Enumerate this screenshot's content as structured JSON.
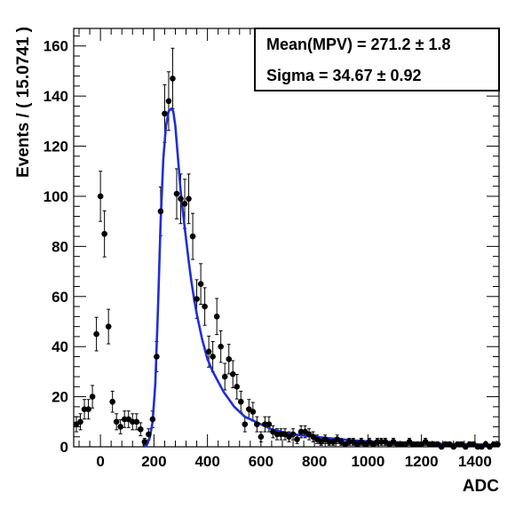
{
  "chart_data": {
    "type": "scatter",
    "title": "",
    "xlabel": "ADC",
    "ylabel": "Events / ( 15.0741 )",
    "xlim": [
      -100,
      1490
    ],
    "ylim": [
      0,
      167
    ],
    "xticks": [
      0,
      200,
      400,
      600,
      800,
      1000,
      1200,
      1400
    ],
    "yticks": [
      0,
      20,
      40,
      60,
      80,
      100,
      120,
      140,
      160
    ],
    "xtick_labels": [
      "0",
      "200",
      "400",
      "600",
      "800",
      "1000",
      "1200",
      "1400"
    ],
    "ytick_labels": [
      "0",
      "20",
      "40",
      "60",
      "80",
      "100",
      "120",
      "140",
      "160"
    ],
    "grid": false,
    "stats": {
      "line1_label": "Mean(MPV) =  271.2 ",
      "line1_pm": "± 1.8",
      "line2_label": "Sigma =  34.67 ",
      "line2_pm": "± 0.92"
    },
    "series": [
      {
        "kind": "points",
        "color": "#000000",
        "x": [
          -90,
          -75,
          -60,
          -45,
          -30,
          -15,
          0,
          15,
          30,
          45,
          60,
          75,
          90,
          105,
          120,
          135,
          150,
          165,
          180,
          195,
          210,
          225,
          240,
          255,
          270,
          285,
          300,
          315,
          330,
          345,
          360,
          375,
          390,
          405,
          420,
          435,
          450,
          465,
          480,
          495,
          510,
          525,
          540,
          555,
          570,
          585,
          600,
          615,
          630,
          645,
          660,
          675,
          690,
          705,
          720,
          735,
          750,
          765,
          780,
          795,
          810,
          825,
          840,
          855,
          870,
          885,
          900,
          915,
          930,
          945,
          960,
          975,
          990,
          1005,
          1020,
          1035,
          1050,
          1065,
          1080,
          1095,
          1110,
          1125,
          1140,
          1155,
          1170,
          1185,
          1200,
          1215,
          1230,
          1245,
          1260,
          1275,
          1290,
          1305,
          1320,
          1335,
          1350,
          1365,
          1380,
          1395,
          1410,
          1425,
          1440,
          1455,
          1470,
          1485
        ],
        "y": [
          9,
          10,
          15,
          15,
          20,
          45,
          100,
          85,
          48,
          18,
          10,
          8,
          11,
          11,
          10,
          10,
          7,
          2,
          5,
          11,
          36,
          94,
          133,
          138,
          147,
          101,
          99,
          97,
          99,
          84,
          59,
          65,
          56,
          38,
          36,
          52,
          40,
          28,
          35,
          29,
          24,
          18,
          9,
          15,
          14,
          9,
          4,
          9,
          9,
          6,
          5,
          5,
          5,
          4,
          5,
          3,
          6,
          6,
          5,
          4,
          3,
          2,
          3,
          2,
          2,
          3,
          2,
          1,
          2,
          2,
          1,
          2,
          1,
          2,
          1,
          2,
          2,
          2,
          1,
          2,
          1,
          1,
          1,
          2,
          1,
          1,
          1,
          2,
          1,
          1,
          1,
          0,
          1,
          1,
          0,
          1,
          1,
          0,
          1,
          1,
          0,
          0,
          1,
          0,
          1,
          1
        ],
        "err": [
          3,
          3.2,
          3.9,
          3.9,
          4.5,
          6.7,
          10,
          9.2,
          6.9,
          4.2,
          3.2,
          2.8,
          3.3,
          3.3,
          3.2,
          3.2,
          2.6,
          1.4,
          2.2,
          3.3,
          6,
          9.7,
          11.5,
          11.7,
          12.1,
          10,
          9.9,
          9.8,
          9.9,
          9.2,
          7.7,
          8.1,
          7.5,
          6.2,
          6,
          7.2,
          6.3,
          5.3,
          5.9,
          5.4,
          4.9,
          4.2,
          3,
          3.9,
          3.7,
          3,
          2,
          3,
          3,
          2.4,
          2.2,
          2.2,
          2.2,
          2,
          2.2,
          1.7,
          2.4,
          2.4,
          2.2,
          2,
          1.7,
          1.4,
          1.7,
          1.4,
          1.4,
          1.7,
          1.4,
          1,
          1.4,
          1.4,
          1,
          1.4,
          1,
          1.4,
          1,
          1.4,
          1.4,
          1.4,
          1,
          1.4,
          1,
          1,
          1,
          1.4,
          1,
          1,
          1,
          1.4,
          1,
          1,
          1,
          0.5,
          1,
          1,
          0.5,
          1,
          1,
          0.5,
          1,
          1,
          0.5,
          0.5,
          1,
          0.5,
          1,
          1
        ]
      },
      {
        "kind": "fit-curve",
        "color": "#1f2fd6",
        "x": [
          165,
          175,
          185,
          195,
          205,
          215,
          225,
          235,
          245,
          255,
          265,
          272,
          280,
          290,
          300,
          310,
          320,
          330,
          340,
          350,
          360,
          370,
          380,
          390,
          400,
          420,
          440,
          460,
          480,
          500,
          520,
          540,
          560,
          580,
          600,
          640,
          680,
          720,
          760,
          800,
          850,
          900,
          950,
          1000,
          1100,
          1200,
          1300,
          1400,
          1490
        ],
        "y": [
          0,
          1,
          4,
          10,
          25,
          55,
          90,
          115,
          128,
          134,
          135,
          134,
          128,
          115,
          102,
          92,
          83,
          74,
          66,
          59,
          53,
          48,
          43,
          39,
          35,
          30,
          26,
          22,
          19,
          16,
          14,
          12,
          11,
          10,
          9,
          7,
          6,
          5,
          4.5,
          4,
          3.5,
          3,
          2.5,
          2.2,
          1.8,
          1.5,
          1.2,
          1,
          0.8
        ]
      }
    ]
  }
}
